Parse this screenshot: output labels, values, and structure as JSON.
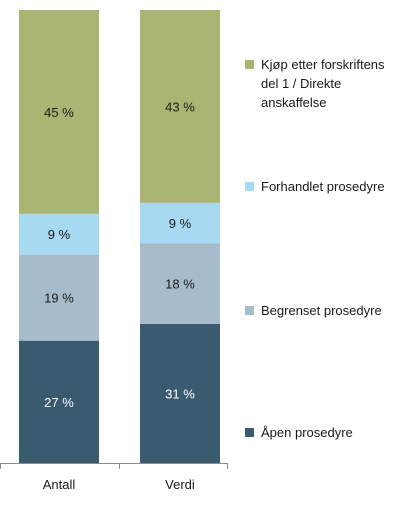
{
  "chart_data": {
    "type": "bar",
    "stacked": true,
    "percent": true,
    "categories": [
      "Antall",
      "Verdi"
    ],
    "series": [
      {
        "name": "Åpen prosedyre",
        "values": [
          27,
          31
        ],
        "labels": [
          "27 %",
          "31 %"
        ],
        "color": "#3a5a70",
        "text_color": "#ffffff"
      },
      {
        "name": "Begrenset prosedyre",
        "values": [
          19,
          18
        ],
        "labels": [
          "19 %",
          "18 %"
        ],
        "color": "#a7bccb",
        "text_color": "#1a1a1a"
      },
      {
        "name": "Forhandlet prosedyre",
        "values": [
          9,
          9
        ],
        "labels": [
          "9 %",
          "9 %"
        ],
        "color": "#a8d9f2",
        "text_color": "#1a1a1a"
      },
      {
        "name": "Kjøp etter forskriftens del 1 / Direkte anskaffelse",
        "legend_lines": [
          "Kjøp etter forskriftens",
          "del 1 / Direkte",
          "anskaffelse"
        ],
        "values": [
          45,
          43
        ],
        "labels": [
          "45 %",
          "43 %"
        ],
        "color": "#aab473",
        "text_color": "#1a1a1a"
      }
    ],
    "ylim": [
      0,
      100
    ],
    "grid": false,
    "legend_position": "right"
  }
}
